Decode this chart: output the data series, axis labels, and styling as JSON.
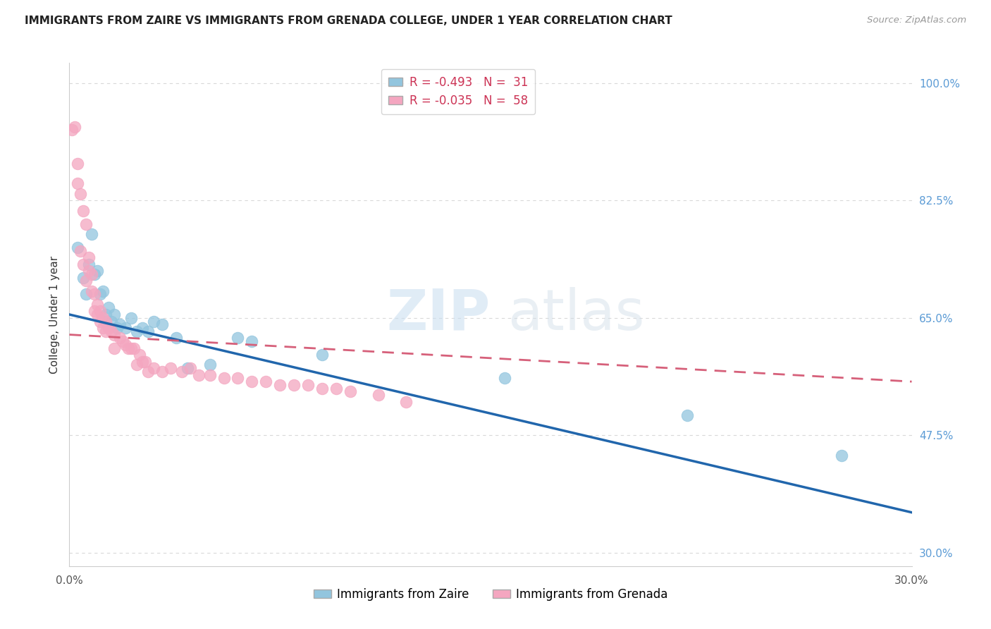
{
  "title": "IMMIGRANTS FROM ZAIRE VS IMMIGRANTS FROM GRENADA COLLEGE, UNDER 1 YEAR CORRELATION CHART",
  "source": "Source: ZipAtlas.com",
  "ylabel_label": "College, Under 1 year",
  "ylabel_ticks": [
    30.0,
    47.5,
    65.0,
    82.5,
    100.0
  ],
  "xmin": 0.0,
  "xmax": 0.3,
  "ymin": 28.0,
  "ymax": 103.0,
  "zaire_color": "#92c5de",
  "grenada_color": "#f4a6c0",
  "zaire_line_color": "#2166ac",
  "grenada_line_color": "#d6607a",
  "legend_zaire_r": "-0.493",
  "legend_zaire_n": "31",
  "legend_grenada_r": "-0.035",
  "legend_grenada_n": "58",
  "background_color": "#ffffff",
  "grid_color": "#d9d9d9",
  "zaire_points": [
    [
      0.003,
      75.5
    ],
    [
      0.005,
      71.0
    ],
    [
      0.006,
      68.5
    ],
    [
      0.007,
      73.0
    ],
    [
      0.008,
      77.5
    ],
    [
      0.009,
      71.5
    ],
    [
      0.01,
      72.0
    ],
    [
      0.011,
      68.5
    ],
    [
      0.012,
      69.0
    ],
    [
      0.013,
      65.5
    ],
    [
      0.014,
      66.5
    ],
    [
      0.015,
      64.5
    ],
    [
      0.016,
      65.5
    ],
    [
      0.017,
      63.5
    ],
    [
      0.018,
      64.0
    ],
    [
      0.02,
      63.5
    ],
    [
      0.022,
      65.0
    ],
    [
      0.024,
      63.0
    ],
    [
      0.026,
      63.5
    ],
    [
      0.028,
      63.0
    ],
    [
      0.03,
      64.5
    ],
    [
      0.033,
      64.0
    ],
    [
      0.038,
      62.0
    ],
    [
      0.042,
      57.5
    ],
    [
      0.05,
      58.0
    ],
    [
      0.06,
      62.0
    ],
    [
      0.065,
      61.5
    ],
    [
      0.09,
      59.5
    ],
    [
      0.155,
      56.0
    ],
    [
      0.22,
      50.5
    ],
    [
      0.275,
      44.5
    ]
  ],
  "grenada_points": [
    [
      0.001,
      93.0
    ],
    [
      0.002,
      93.5
    ],
    [
      0.003,
      88.0
    ],
    [
      0.003,
      85.0
    ],
    [
      0.004,
      83.5
    ],
    [
      0.004,
      75.0
    ],
    [
      0.005,
      81.0
    ],
    [
      0.005,
      73.0
    ],
    [
      0.006,
      79.0
    ],
    [
      0.006,
      70.5
    ],
    [
      0.007,
      74.0
    ],
    [
      0.007,
      72.0
    ],
    [
      0.008,
      71.5
    ],
    [
      0.008,
      69.0
    ],
    [
      0.009,
      68.5
    ],
    [
      0.009,
      66.0
    ],
    [
      0.01,
      67.0
    ],
    [
      0.01,
      65.5
    ],
    [
      0.011,
      66.0
    ],
    [
      0.011,
      64.5
    ],
    [
      0.012,
      65.0
    ],
    [
      0.012,
      63.5
    ],
    [
      0.013,
      64.5
    ],
    [
      0.013,
      63.0
    ],
    [
      0.014,
      63.5
    ],
    [
      0.015,
      63.0
    ],
    [
      0.016,
      62.5
    ],
    [
      0.016,
      60.5
    ],
    [
      0.018,
      62.0
    ],
    [
      0.019,
      61.5
    ],
    [
      0.02,
      61.0
    ],
    [
      0.021,
      60.5
    ],
    [
      0.022,
      60.5
    ],
    [
      0.023,
      60.5
    ],
    [
      0.024,
      58.0
    ],
    [
      0.025,
      59.5
    ],
    [
      0.026,
      58.5
    ],
    [
      0.027,
      58.5
    ],
    [
      0.028,
      57.0
    ],
    [
      0.03,
      57.5
    ],
    [
      0.033,
      57.0
    ],
    [
      0.036,
      57.5
    ],
    [
      0.04,
      57.0
    ],
    [
      0.043,
      57.5
    ],
    [
      0.046,
      56.5
    ],
    [
      0.05,
      56.5
    ],
    [
      0.055,
      56.0
    ],
    [
      0.06,
      56.0
    ],
    [
      0.065,
      55.5
    ],
    [
      0.07,
      55.5
    ],
    [
      0.075,
      55.0
    ],
    [
      0.08,
      55.0
    ],
    [
      0.085,
      55.0
    ],
    [
      0.09,
      54.5
    ],
    [
      0.095,
      54.5
    ],
    [
      0.1,
      54.0
    ],
    [
      0.11,
      53.5
    ],
    [
      0.12,
      52.5
    ]
  ],
  "zaire_line": [
    0.0,
    0.3
  ],
  "zaire_line_y": [
    65.5,
    36.0
  ],
  "grenada_line": [
    0.0,
    0.3
  ],
  "grenada_line_y": [
    62.5,
    55.5
  ]
}
